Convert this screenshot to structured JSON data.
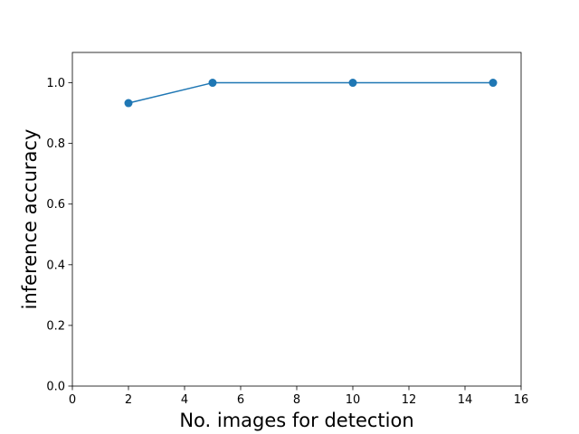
{
  "chart_data": {
    "type": "line",
    "title": "",
    "xlabel": "No. images for detection",
    "ylabel": "inference accuracy",
    "xlim": [
      0,
      16
    ],
    "ylim": [
      0,
      1.1
    ],
    "x_ticks": [
      0,
      2,
      4,
      6,
      8,
      10,
      12,
      14,
      16
    ],
    "y_ticks": [
      0.0,
      0.2,
      0.4,
      0.6,
      0.8,
      1.0
    ],
    "x_tick_labels": [
      "0",
      "2",
      "4",
      "6",
      "8",
      "10",
      "12",
      "14",
      "16"
    ],
    "y_tick_labels": [
      "0.0",
      "0.2",
      "0.4",
      "0.6",
      "0.8",
      "1.0"
    ],
    "grid": false,
    "legend": "none",
    "marker": "circle",
    "series": [
      {
        "color": "#1f77b4",
        "x": [
          2,
          5,
          10,
          15
        ],
        "y": [
          0.933,
          1.0,
          1.0,
          1.0
        ]
      }
    ]
  }
}
